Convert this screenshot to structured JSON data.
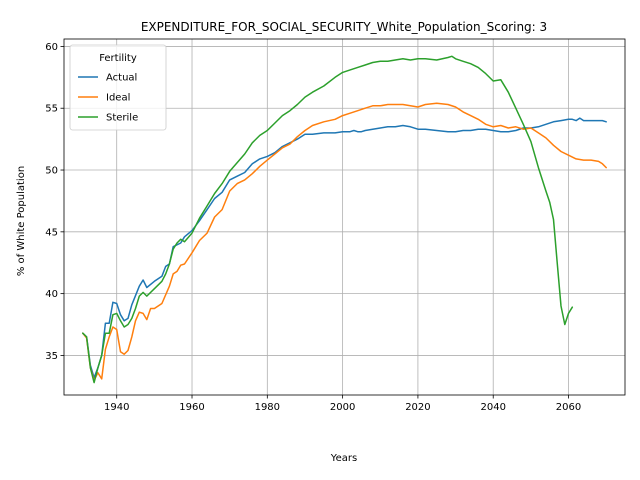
{
  "chart_data": {
    "type": "line",
    "title": "EXPENDITURE_FOR_SOCIAL_SECURITY_White_Population_Scoring: 3",
    "xlabel": "Years",
    "ylabel": "% of White Population",
    "xlim": [
      1926,
      2075
    ],
    "ylim": [
      31.8,
      60.6
    ],
    "xticks": [
      1940,
      1960,
      1980,
      2000,
      2020,
      2040,
      2060
    ],
    "yticks": [
      35,
      40,
      45,
      50,
      55,
      60
    ],
    "grid": true,
    "legend": {
      "title": "Fertility",
      "position": "top-left"
    },
    "series": [
      {
        "name": "Actual",
        "color": "#1f77b4",
        "x": [
          1931,
          1932,
          1933,
          1934,
          1935,
          1936,
          1937,
          1938,
          1939,
          1940,
          1941,
          1942,
          1943,
          1944,
          1946,
          1947,
          1948,
          1950,
          1952,
          1953,
          1954,
          1955,
          1957,
          1958,
          1960,
          1962,
          1964,
          1966,
          1968,
          1970,
          1972,
          1974,
          1976,
          1978,
          1980,
          1982,
          1984,
          1986,
          1988,
          1990,
          1992,
          1995,
          1998,
          2000,
          2002,
          2003,
          2004,
          2005,
          2006,
          2008,
          2010,
          2012,
          2014,
          2016,
          2018,
          2020,
          2022,
          2025,
          2028,
          2030,
          2032,
          2034,
          2036,
          2038,
          2040,
          2042,
          2044,
          2046,
          2048,
          2050,
          2052,
          2054,
          2056,
          2058,
          2060,
          2061,
          2062,
          2063,
          2064,
          2066,
          2068,
          2069,
          2070
        ],
        "values": [
          36.8,
          36.5,
          34.2,
          33.2,
          34.0,
          35.0,
          37.6,
          37.6,
          39.3,
          39.2,
          38.3,
          37.8,
          38.0,
          39.1,
          40.6,
          41.1,
          40.5,
          41.0,
          41.4,
          42.2,
          42.4,
          43.8,
          44.1,
          44.6,
          45.1,
          45.9,
          46.8,
          47.7,
          48.2,
          49.2,
          49.5,
          49.8,
          50.5,
          50.9,
          51.1,
          51.4,
          51.9,
          52.2,
          52.5,
          52.9,
          52.9,
          53.0,
          53.0,
          53.1,
          53.1,
          53.2,
          53.1,
          53.1,
          53.2,
          53.3,
          53.4,
          53.5,
          53.5,
          53.6,
          53.5,
          53.3,
          53.3,
          53.2,
          53.1,
          53.1,
          53.2,
          53.2,
          53.3,
          53.3,
          53.2,
          53.1,
          53.1,
          53.2,
          53.4,
          53.4,
          53.5,
          53.7,
          53.9,
          54.0,
          54.1,
          54.1,
          54.0,
          54.2,
          54.0,
          54.0,
          54.0,
          54.0,
          53.9
        ]
      },
      {
        "name": "Ideal",
        "color": "#ff7f0e",
        "x": [
          1931,
          1932,
          1933,
          1934,
          1935,
          1936,
          1937,
          1938,
          1939,
          1940,
          1941,
          1942,
          1943,
          1944,
          1945,
          1946,
          1947,
          1948,
          1949,
          1950,
          1952,
          1954,
          1955,
          1956,
          1957,
          1958,
          1960,
          1962,
          1964,
          1966,
          1968,
          1970,
          1972,
          1974,
          1976,
          1978,
          1980,
          1982,
          1984,
          1986,
          1988,
          1990,
          1992,
          1995,
          1998,
          2000,
          2002,
          2004,
          2006,
          2008,
          2010,
          2012,
          2014,
          2016,
          2018,
          2020,
          2022,
          2025,
          2028,
          2030,
          2032,
          2034,
          2036,
          2038,
          2040,
          2042,
          2044,
          2046,
          2048,
          2050,
          2052,
          2054,
          2056,
          2058,
          2060,
          2062,
          2064,
          2066,
          2068,
          2069,
          2070
        ],
        "values": [
          36.8,
          36.4,
          34.0,
          33.0,
          33.6,
          33.1,
          35.5,
          36.5,
          37.3,
          37.1,
          35.3,
          35.1,
          35.4,
          36.5,
          37.8,
          38.5,
          38.4,
          37.9,
          38.8,
          38.8,
          39.2,
          40.6,
          41.6,
          41.8,
          42.3,
          42.4,
          43.3,
          44.3,
          44.9,
          46.2,
          46.8,
          48.3,
          48.9,
          49.2,
          49.7,
          50.3,
          50.8,
          51.3,
          51.8,
          52.1,
          52.7,
          53.2,
          53.6,
          53.9,
          54.1,
          54.4,
          54.6,
          54.8,
          55.0,
          55.2,
          55.2,
          55.3,
          55.3,
          55.3,
          55.2,
          55.1,
          55.3,
          55.4,
          55.3,
          55.1,
          54.7,
          54.4,
          54.1,
          53.7,
          53.5,
          53.6,
          53.4,
          53.5,
          53.3,
          53.4,
          53.0,
          52.6,
          52.0,
          51.5,
          51.2,
          50.9,
          50.8,
          50.8,
          50.7,
          50.5,
          50.2
        ]
      },
      {
        "name": "Sterile",
        "color": "#2ca02c",
        "x": [
          1931,
          1932,
          1933,
          1934,
          1935,
          1936,
          1937,
          1938,
          1939,
          1940,
          1941,
          1942,
          1943,
          1944,
          1945,
          1946,
          1947,
          1948,
          1950,
          1952,
          1953,
          1954,
          1955,
          1956,
          1957,
          1958,
          1960,
          1962,
          1964,
          1966,
          1968,
          1970,
          1972,
          1974,
          1976,
          1978,
          1980,
          1982,
          1984,
          1986,
          1988,
          1990,
          1992,
          1995,
          1998,
          2000,
          2002,
          2004,
          2006,
          2008,
          2010,
          2012,
          2014,
          2016,
          2018,
          2020,
          2022,
          2025,
          2028,
          2029,
          2030,
          2032,
          2034,
          2036,
          2038,
          2040,
          2042,
          2044,
          2046,
          2048,
          2050,
          2052,
          2054,
          2055,
          2056,
          2057,
          2058,
          2059,
          2060,
          2061
        ],
        "values": [
          36.8,
          36.5,
          34.0,
          32.8,
          34.0,
          35.0,
          36.8,
          36.8,
          38.3,
          38.4,
          37.8,
          37.3,
          37.5,
          38.0,
          38.8,
          39.8,
          40.1,
          39.8,
          40.4,
          41.0,
          41.6,
          42.4,
          43.6,
          44.1,
          44.4,
          44.2,
          44.9,
          46.1,
          47.1,
          48.1,
          48.9,
          49.9,
          50.6,
          51.3,
          52.2,
          52.8,
          53.2,
          53.8,
          54.4,
          54.8,
          55.3,
          55.9,
          56.3,
          56.8,
          57.5,
          57.9,
          58.1,
          58.3,
          58.5,
          58.7,
          58.8,
          58.8,
          58.9,
          59.0,
          58.9,
          59.0,
          59.0,
          58.9,
          59.1,
          59.2,
          59.0,
          58.8,
          58.6,
          58.3,
          57.8,
          57.2,
          57.3,
          56.3,
          55.0,
          53.7,
          52.3,
          50.2,
          48.3,
          47.4,
          46.0,
          42.5,
          39.0,
          37.5,
          38.4,
          38.9
        ]
      }
    ]
  }
}
